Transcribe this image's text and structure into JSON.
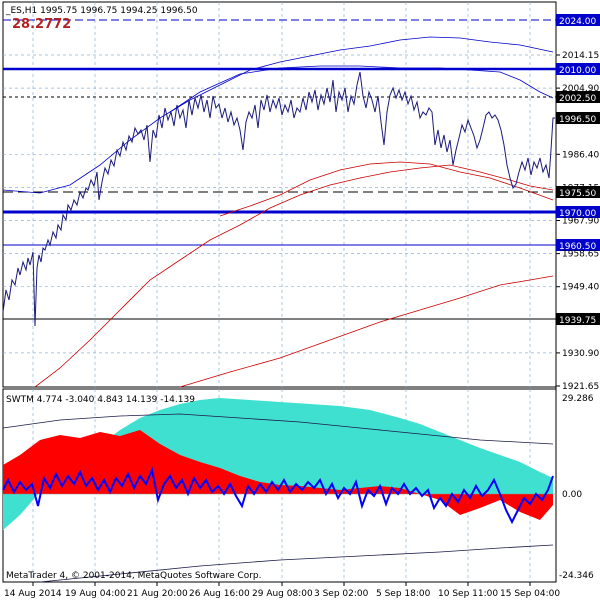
{
  "header": {
    "symbol_info": "_ES,H1  1995.75  1996.75  1994.25  1996.50",
    "big_value": "28.2772"
  },
  "price_axis": {
    "ticks": [
      "2014.15",
      "2004.90",
      "1986.40",
      "1977.15",
      "1967.90",
      "1958.65",
      "1949.40",
      "1930.90",
      "1921.65"
    ],
    "levels": [
      {
        "label": "2024.00",
        "color": "#0000cc"
      },
      {
        "label": "2010.00",
        "color": "#0000cc"
      },
      {
        "label": "2002.50",
        "color": "#000000"
      },
      {
        "label": "1996.50",
        "color": "#000000"
      },
      {
        "label": "1975.50",
        "color": "#000000"
      },
      {
        "label": "1970.00",
        "color": "#0000cc"
      },
      {
        "label": "1960.50",
        "color": "#0000cc"
      },
      {
        "label": "1939.75",
        "color": "#000000"
      }
    ]
  },
  "indicator": {
    "title": "SWTM 4.774 -3.040 4.843 14.139 -14.139",
    "axis_top": "29.286",
    "axis_zero": "0.00",
    "axis_bottom": "-24.346",
    "colors": {
      "cyan": "#40e0d0",
      "red": "#ff0000",
      "blue": "#0000cc"
    }
  },
  "copyright": "MetaTrader 4, © 2001-2014, MetaQuotes Software Corp.",
  "time_axis": [
    "14 Aug 2014",
    "19 Aug 04:00",
    "21 Aug 20:00",
    "26 Aug 16:00",
    "29 Aug 08:00",
    "3 Sep 02:00",
    "5 Sep 18:00",
    "10 Sep 11:00",
    "15 Sep 04:00"
  ]
}
